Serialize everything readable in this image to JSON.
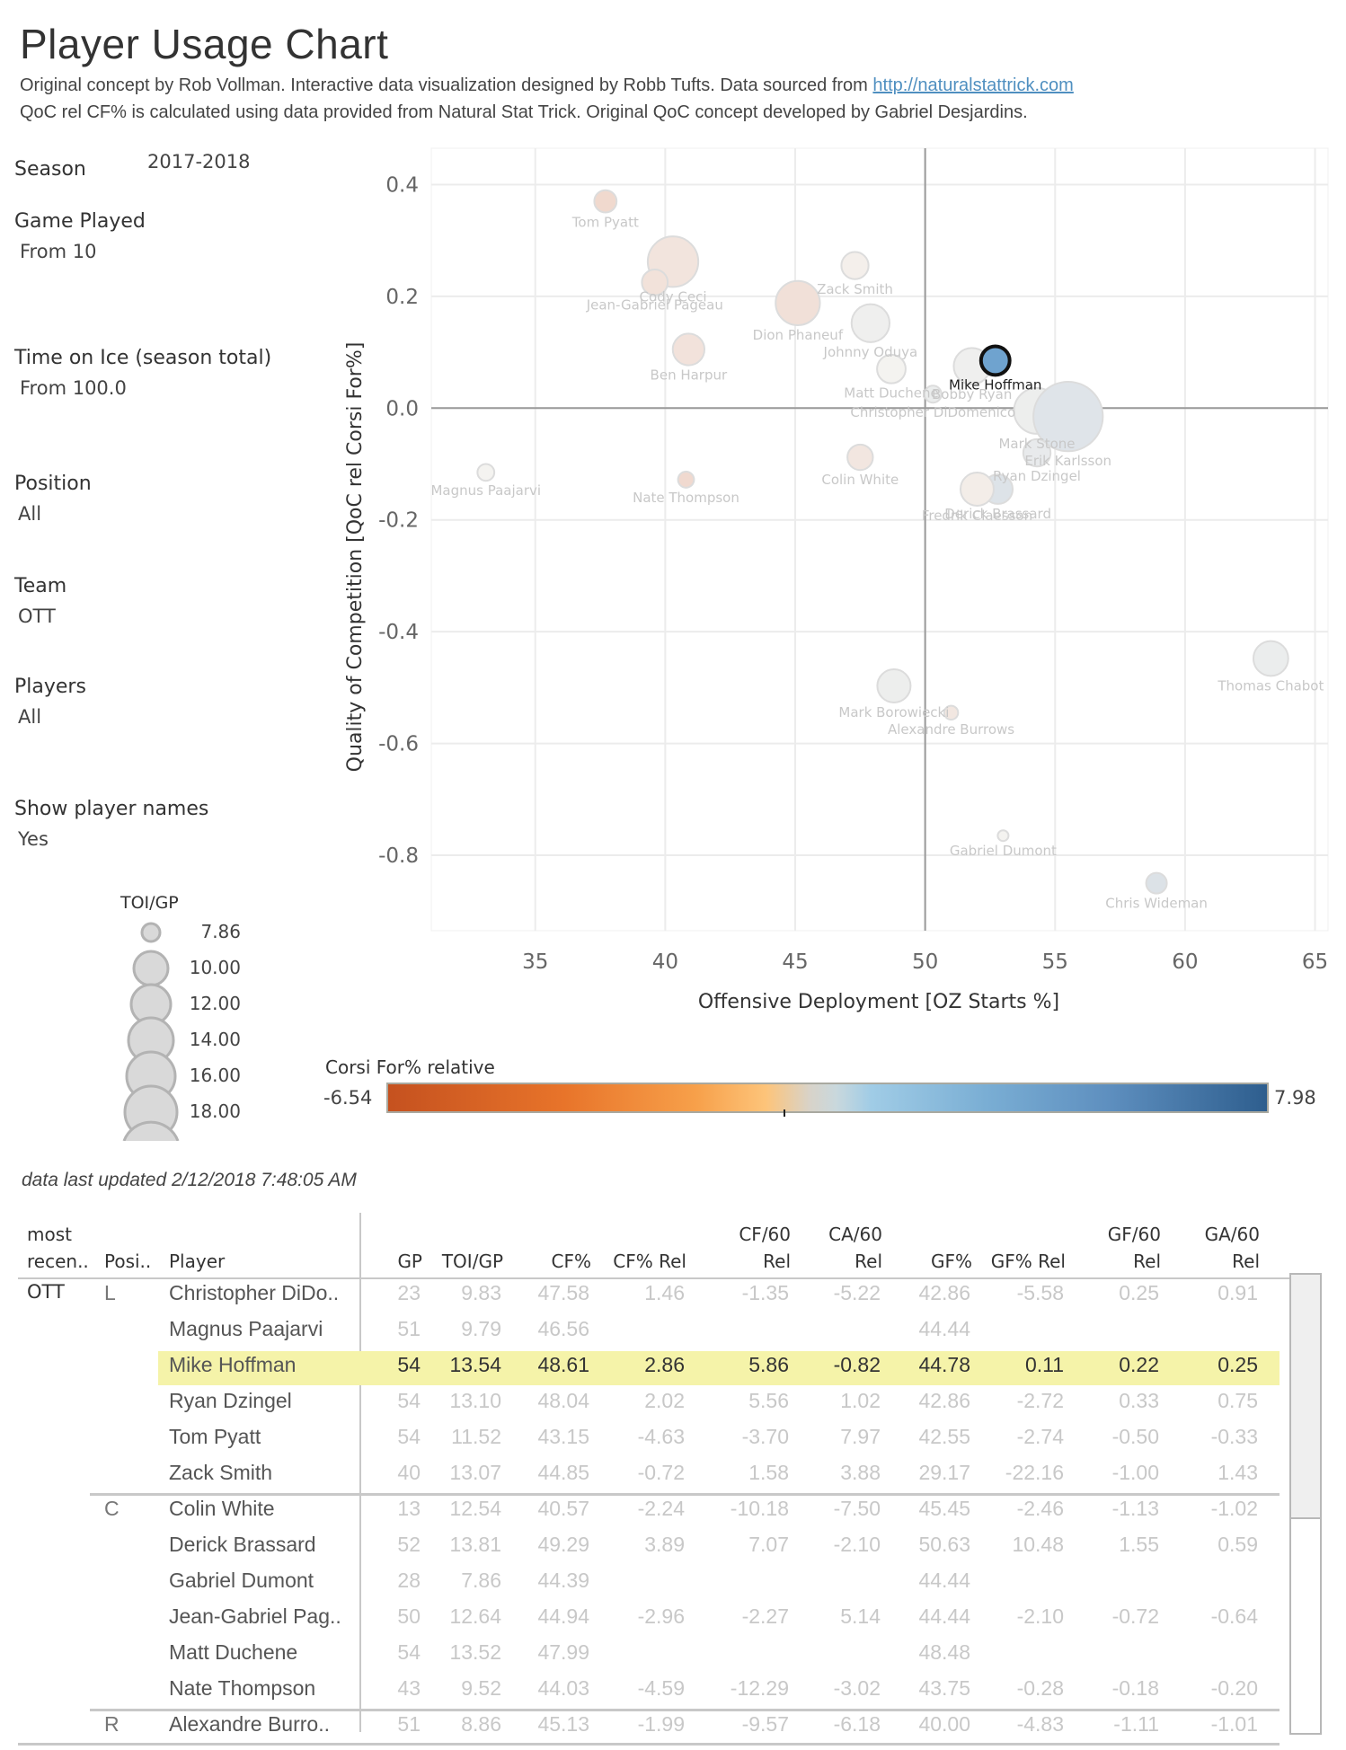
{
  "header": {
    "title": "Player Usage Chart",
    "subtitle_line1_prefix": "Original concept by Rob Vollman.  Interactive data visualization designed by Robb Tufts.  Data sourced from ",
    "subtitle_link": "http://naturalstattrick.com",
    "subtitle_line2": "QoC rel CF% is calculated using data provided from Natural Stat Trick.  Original QoC concept developed by Gabriel Desjardins."
  },
  "filters": {
    "season": {
      "label": "Season",
      "value": "2017-2018"
    },
    "games_played": {
      "label": "Game Played",
      "value": "From 10"
    },
    "toi": {
      "label": "Time on Ice (season total)",
      "value": "From 100.0"
    },
    "position": {
      "label": "Position",
      "value": "All"
    },
    "team": {
      "label": "Team",
      "value": "OTT"
    },
    "players": {
      "label": "Players",
      "value": "All"
    },
    "show_names": {
      "label": "Show player names",
      "value": "Yes"
    }
  },
  "size_legend": {
    "title": "TOI/GP",
    "values": [
      "7.86",
      "10.00",
      "12.00",
      "14.00",
      "16.00",
      "18.00"
    ]
  },
  "color_legend": {
    "title": "Corsi For% relative",
    "min": "-6.54",
    "max": "7.98",
    "colors": {
      "low": "#c5511f",
      "mid": "#d8d3c9",
      "high": "#2e5e8e"
    }
  },
  "chart_data": {
    "type": "scatter",
    "title": "",
    "xlabel": "Offensive Deployment [OZ Starts %]",
    "ylabel": "Quality of Competition [QoC rel Corsi For%]",
    "xlim": [
      31,
      65.5
    ],
    "ylim": [
      -0.935,
      0.465
    ],
    "xticks": [
      35,
      40,
      45,
      50,
      55,
      60,
      65
    ],
    "yticks": [
      0.4,
      0.2,
      0.0,
      -0.2,
      -0.4,
      -0.6,
      -0.8
    ],
    "ytick_labels": [
      "0.4",
      "0.2",
      "0.0",
      "-0.2",
      "-0.4",
      "-0.6",
      "-0.8"
    ],
    "reference_lines": {
      "x": 50,
      "y": 0
    },
    "grid": true,
    "size_field": "TOI/GP",
    "color_field": "Corsi For% relative",
    "highlighted": "Mike Hoffman",
    "points": [
      {
        "name": "Tom Pyatt",
        "x": 37.7,
        "y": 0.37,
        "toi": 11.52,
        "cfrel": -4.63
      },
      {
        "name": "Cody Ceci",
        "x": 40.3,
        "y": 0.262,
        "toi": 20.5,
        "cfrel": -2.6
      },
      {
        "name": "Jean-Gabriel Pageau",
        "x": 39.6,
        "y": 0.225,
        "toi": 12.64,
        "cfrel": -2.96
      },
      {
        "name": "Dion Phaneuf",
        "x": 45.1,
        "y": 0.188,
        "toi": 18.5,
        "cfrel": -3.3
      },
      {
        "name": "Zack Smith",
        "x": 47.3,
        "y": 0.255,
        "toi": 13.07,
        "cfrel": -0.72
      },
      {
        "name": "Johnny Oduya",
        "x": 47.9,
        "y": 0.152,
        "toi": 16.5,
        "cfrel": 0.9
      },
      {
        "name": "Ben Harpur",
        "x": 40.9,
        "y": 0.105,
        "toi": 14.5,
        "cfrel": -2.9
      },
      {
        "name": "Matt Duchene",
        "x": 48.7,
        "y": 0.07,
        "toi": 13.52,
        "cfrel": 0.0
      },
      {
        "name": "Bobby Ryan",
        "x": 51.8,
        "y": 0.075,
        "toi": 16.0,
        "cfrel": 0.9
      },
      {
        "name": "Mike Hoffman",
        "x": 52.7,
        "y": 0.085,
        "toi": 13.54,
        "cfrel": 2.86
      },
      {
        "name": "Christopher DiDomenico",
        "x": 50.3,
        "y": 0.025,
        "toi": 9.83,
        "cfrel": 1.46
      },
      {
        "name": "Mark Stone",
        "x": 54.3,
        "y": -0.005,
        "toi": 19.0,
        "cfrel": 1.2
      },
      {
        "name": "Erik Karlsson",
        "x": 55.5,
        "y": -0.015,
        "toi": 26.5,
        "cfrel": 3.5
      },
      {
        "name": "Ryan Dzingel",
        "x": 54.3,
        "y": -0.08,
        "toi": 13.1,
        "cfrel": 2.02
      },
      {
        "name": "Colin White",
        "x": 47.5,
        "y": -0.088,
        "toi": 12.54,
        "cfrel": -2.24
      },
      {
        "name": "Derick Brassard",
        "x": 52.8,
        "y": -0.145,
        "toi": 13.81,
        "cfrel": 3.89
      },
      {
        "name": "Fredrik Claesson",
        "x": 52.0,
        "y": -0.145,
        "toi": 15.0,
        "cfrel": -1.1
      },
      {
        "name": "Magnus Paajarvi",
        "x": 33.1,
        "y": -0.115,
        "toi": 9.79,
        "cfrel": 0.0
      },
      {
        "name": "Nate Thompson",
        "x": 40.8,
        "y": -0.128,
        "toi": 9.52,
        "cfrel": -4.59
      },
      {
        "name": "Thomas Chabot",
        "x": 63.3,
        "y": -0.448,
        "toi": 15.5,
        "cfrel": 1.5
      },
      {
        "name": "Mark Borowiecki",
        "x": 48.8,
        "y": -0.497,
        "toi": 15.0,
        "cfrel": 1.2
      },
      {
        "name": "Alexandre Burrows",
        "x": 51.0,
        "y": -0.545,
        "toi": 8.86,
        "cfrel": -1.99
      },
      {
        "name": "Gabriel Dumont",
        "x": 53.0,
        "y": -0.765,
        "toi": 7.86,
        "cfrel": 0.0
      },
      {
        "name": "Chris Wideman",
        "x": 58.9,
        "y": -0.85,
        "toi": 11.0,
        "cfrel": 4.0
      }
    ]
  },
  "updated": "data last updated 2/12/2018 7:48:05 AM",
  "table": {
    "headers": {
      "team": [
        "most",
        "recen.."
      ],
      "position": "Posi..",
      "player": "Player",
      "stats": [
        [
          "",
          "GP"
        ],
        [
          "",
          "TOI/GP"
        ],
        [
          "",
          "CF%"
        ],
        [
          "",
          "CF% Rel"
        ],
        [
          "CF/60",
          "Rel"
        ],
        [
          "CA/60",
          "Rel"
        ],
        [
          "",
          "GF%"
        ],
        [
          "",
          "GF% Rel"
        ],
        [
          "GF/60",
          "Rel"
        ],
        [
          "GA/60",
          "Rel"
        ]
      ]
    },
    "team": "OTT",
    "groups": [
      {
        "position": "L",
        "rows": [
          {
            "player": "Christopher DiDo..",
            "vals": [
              "23",
              "9.83",
              "47.58",
              "1.46",
              "-1.35",
              "-5.22",
              "42.86",
              "-5.58",
              "0.25",
              "0.91"
            ]
          },
          {
            "player": "Magnus Paajarvi",
            "vals": [
              "51",
              "9.79",
              "46.56",
              "",
              "",
              "",
              "44.44",
              "",
              "",
              ""
            ]
          },
          {
            "player": "Mike Hoffman",
            "highlight": true,
            "vals": [
              "54",
              "13.54",
              "48.61",
              "2.86",
              "5.86",
              "-0.82",
              "44.78",
              "0.11",
              "0.22",
              "0.25"
            ]
          },
          {
            "player": "Ryan Dzingel",
            "vals": [
              "54",
              "13.10",
              "48.04",
              "2.02",
              "5.56",
              "1.02",
              "42.86",
              "-2.72",
              "0.33",
              "0.75"
            ]
          },
          {
            "player": "Tom Pyatt",
            "vals": [
              "54",
              "11.52",
              "43.15",
              "-4.63",
              "-3.70",
              "7.97",
              "42.55",
              "-2.74",
              "-0.50",
              "-0.33"
            ]
          },
          {
            "player": "Zack Smith",
            "vals": [
              "40",
              "13.07",
              "44.85",
              "-0.72",
              "1.58",
              "3.88",
              "29.17",
              "-22.16",
              "-1.00",
              "1.43"
            ]
          }
        ]
      },
      {
        "position": "C",
        "rows": [
          {
            "player": "Colin White",
            "vals": [
              "13",
              "12.54",
              "40.57",
              "-2.24",
              "-10.18",
              "-7.50",
              "45.45",
              "-2.46",
              "-1.13",
              "-1.02"
            ]
          },
          {
            "player": "Derick Brassard",
            "vals": [
              "52",
              "13.81",
              "49.29",
              "3.89",
              "7.07",
              "-2.10",
              "50.63",
              "10.48",
              "1.55",
              "0.59"
            ]
          },
          {
            "player": "Gabriel Dumont",
            "vals": [
              "28",
              "7.86",
              "44.39",
              "",
              "",
              "",
              "44.44",
              "",
              "",
              ""
            ]
          },
          {
            "player": "Jean-Gabriel Pag..",
            "vals": [
              "50",
              "12.64",
              "44.94",
              "-2.96",
              "-2.27",
              "5.14",
              "44.44",
              "-2.10",
              "-0.72",
              "-0.64"
            ]
          },
          {
            "player": "Matt Duchene",
            "vals": [
              "54",
              "13.52",
              "47.99",
              "",
              "",
              "",
              "48.48",
              "",
              "",
              ""
            ]
          },
          {
            "player": "Nate Thompson",
            "vals": [
              "43",
              "9.52",
              "44.03",
              "-4.59",
              "-12.29",
              "-3.02",
              "43.75",
              "-0.28",
              "-0.18",
              "-0.20"
            ]
          }
        ]
      },
      {
        "position": "R",
        "rows": [
          {
            "player": "Alexandre Burro..",
            "vals": [
              "51",
              "8.86",
              "45.13",
              "-1.99",
              "-9.57",
              "-6.18",
              "40.00",
              "-4.83",
              "-1.11",
              "-1.01"
            ]
          }
        ]
      }
    ]
  }
}
